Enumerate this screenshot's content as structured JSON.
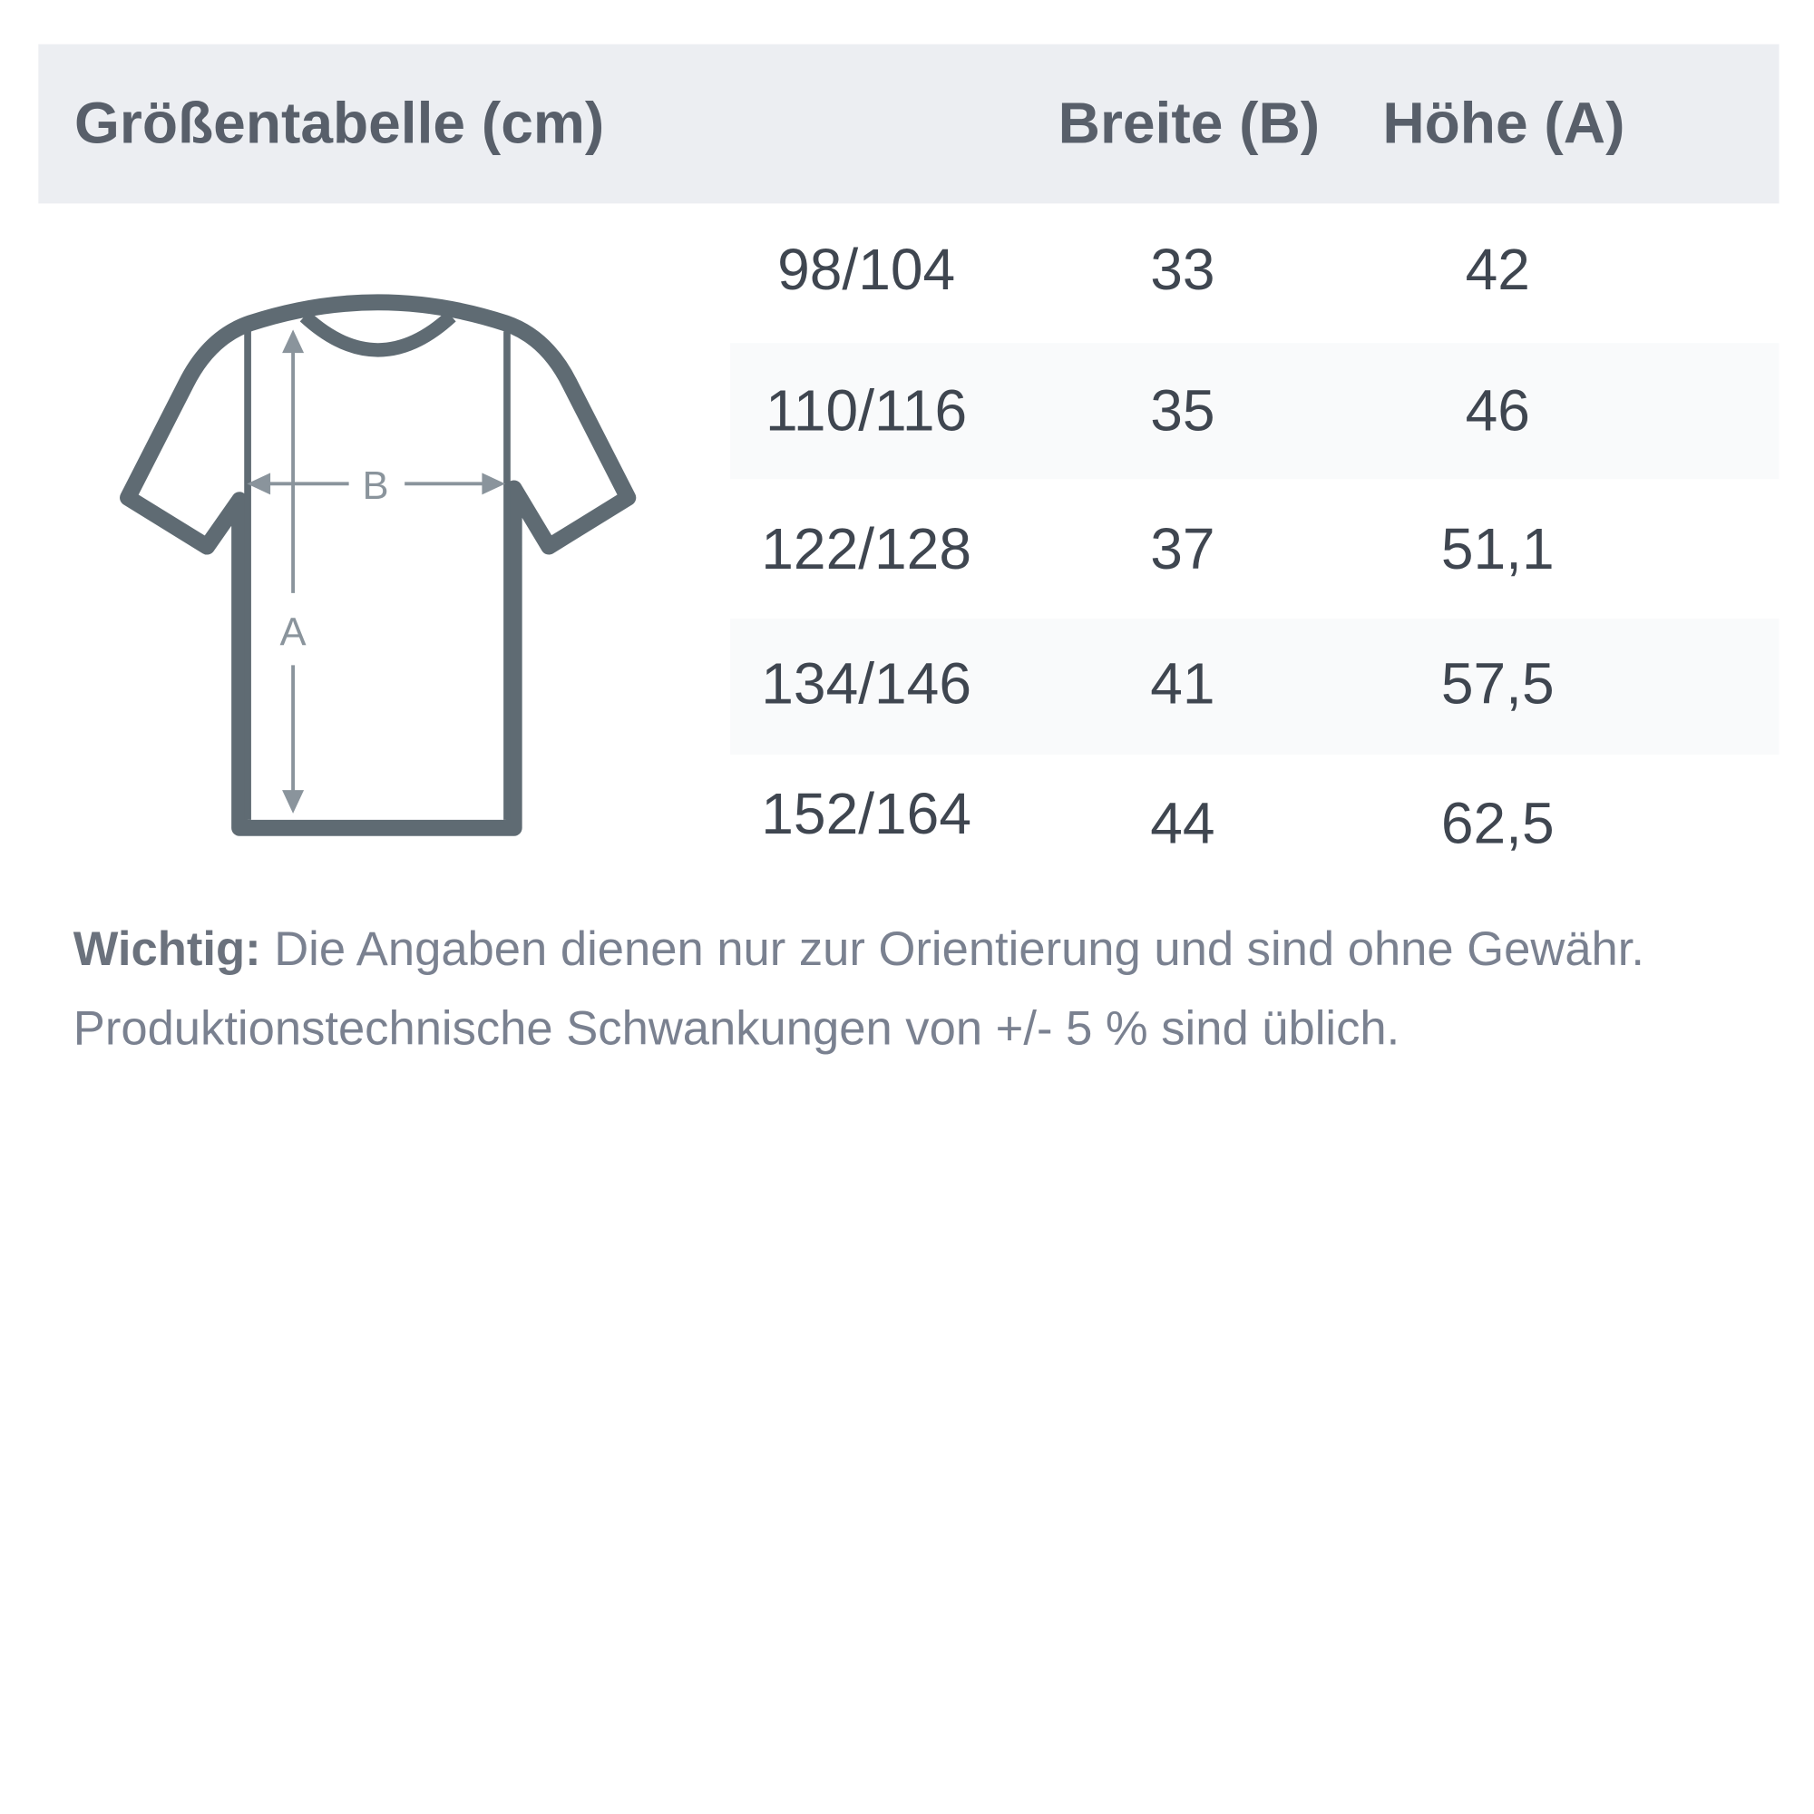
{
  "header": {
    "title": "Größentabelle (cm)",
    "col_width": "Breite (B)",
    "col_height": "Höhe (A)"
  },
  "diagram": {
    "label_width": "B",
    "label_height": "A",
    "icon": "t-shirt-measurement-icon",
    "shirt_color": "#5f6b73",
    "arrow_color": "#8a949c"
  },
  "rows": [
    {
      "size": "98/104",
      "width": "33",
      "height": "42"
    },
    {
      "size": "110/116",
      "width": "35",
      "height": "46"
    },
    {
      "size": "122/128",
      "width": "37",
      "height": "51,1"
    },
    {
      "size": "134/146",
      "width": "41",
      "height": "57,5"
    },
    {
      "size": "152/164",
      "width": "44",
      "height": "62,5"
    }
  ],
  "note": {
    "label": "Wichtig:",
    "line1": "Die Angaben dienen nur zur Orientierung und sind ohne Gewähr.",
    "line2": "Produktionstechnische Schwankungen von +/- 5 % sind üblich."
  }
}
